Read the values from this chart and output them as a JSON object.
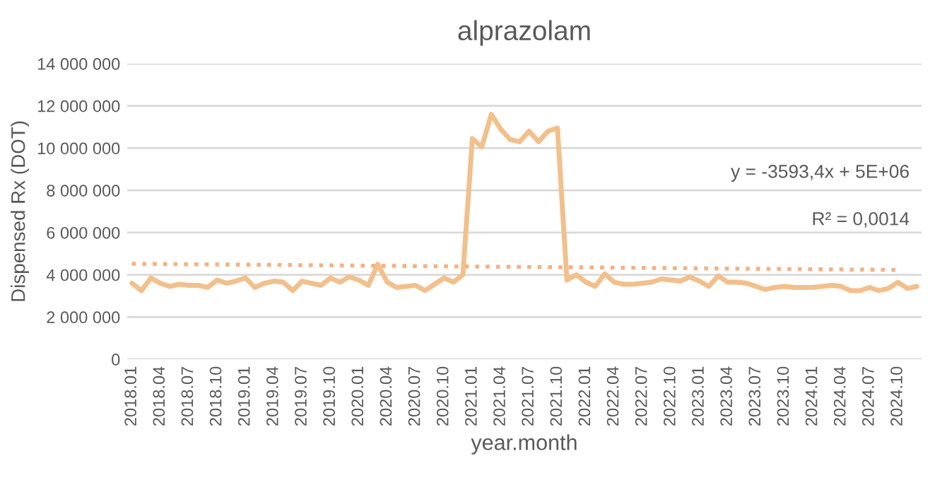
{
  "chart_data": {
    "type": "line",
    "title": "alprazolam",
    "xlabel": "year.month",
    "ylabel": "Dispensed Rx (DOT)",
    "categories": [
      "2018.01",
      null,
      null,
      "2018.04",
      null,
      null,
      "2018.07",
      null,
      null,
      "2018.10",
      null,
      null,
      "2019.01",
      null,
      null,
      "2019.04",
      null,
      null,
      "2019.07",
      null,
      null,
      "2019.10",
      null,
      null,
      "2020.01",
      null,
      null,
      "2020.04",
      null,
      null,
      "2020.07",
      null,
      null,
      "2020.10",
      null,
      null,
      "2021.01",
      null,
      null,
      "2021.04",
      null,
      null,
      "2021.07",
      null,
      null,
      "2021.10",
      null,
      null,
      "2022.01",
      null,
      null,
      "2022.04",
      null,
      null,
      "2022.07",
      null,
      null,
      "2022.10",
      null,
      null,
      "2023.01",
      null,
      null,
      "2023.04",
      null,
      null,
      "2023.07",
      null,
      null,
      "2023.10",
      null,
      null,
      "2024.01",
      null,
      null,
      "2024.04",
      null,
      null,
      "2024.07",
      null,
      null,
      "2024.10",
      null,
      null
    ],
    "series": [
      {
        "color": "#f2c08c",
        "line_style": "solid",
        "values": [
          3600000,
          3250000,
          3850000,
          3600000,
          3450000,
          3550000,
          3500000,
          3500000,
          3400000,
          3750000,
          3600000,
          3700000,
          3850000,
          3400000,
          3600000,
          3700000,
          3650000,
          3250000,
          3700000,
          3600000,
          3500000,
          3850000,
          3650000,
          3900000,
          3750000,
          3500000,
          4500000,
          3650000,
          3400000,
          3450000,
          3500000,
          3250000,
          3550000,
          3850000,
          3650000,
          4000000,
          10450000,
          10050000,
          11600000,
          10900000,
          10400000,
          10300000,
          10800000,
          10300000,
          10800000,
          10950000,
          3750000,
          4000000,
          3650000,
          3450000,
          4050000,
          3650000,
          3550000,
          3550000,
          3600000,
          3650000,
          3800000,
          3750000,
          3700000,
          3900000,
          3700000,
          3450000,
          3950000,
          3650000,
          3650000,
          3600000,
          3450000,
          3300000,
          3400000,
          3450000,
          3400000,
          3400000,
          3400000,
          3450000,
          3500000,
          3450000,
          3250000,
          3250000,
          3400000,
          3250000,
          3350000,
          3650000,
          3350000,
          3450000
        ]
      },
      {
        "color": "#f4b183",
        "line_style": "dotted",
        "x": [
          "2018.01",
          "2024.10"
        ],
        "values": [
          4520000,
          4230000
        ]
      }
    ],
    "ylim": [
      0,
      14000000
    ],
    "yticks": [
      {
        "value": 0,
        "label": "0"
      },
      {
        "value": 2000000,
        "label": "2 000 000"
      },
      {
        "value": 4000000,
        "label": "4 000 000"
      },
      {
        "value": 6000000,
        "label": "6 000 000"
      },
      {
        "value": 8000000,
        "label": "8 000 000"
      },
      {
        "value": 10000000,
        "label": "10 000 000"
      },
      {
        "value": 12000000,
        "label": "12 000 000"
      },
      {
        "value": 14000000,
        "label": "14 000 000"
      }
    ],
    "grid": "y",
    "annotations": [
      "y = -3593,4x + 5E+06",
      "R² = 0,0014"
    ]
  }
}
